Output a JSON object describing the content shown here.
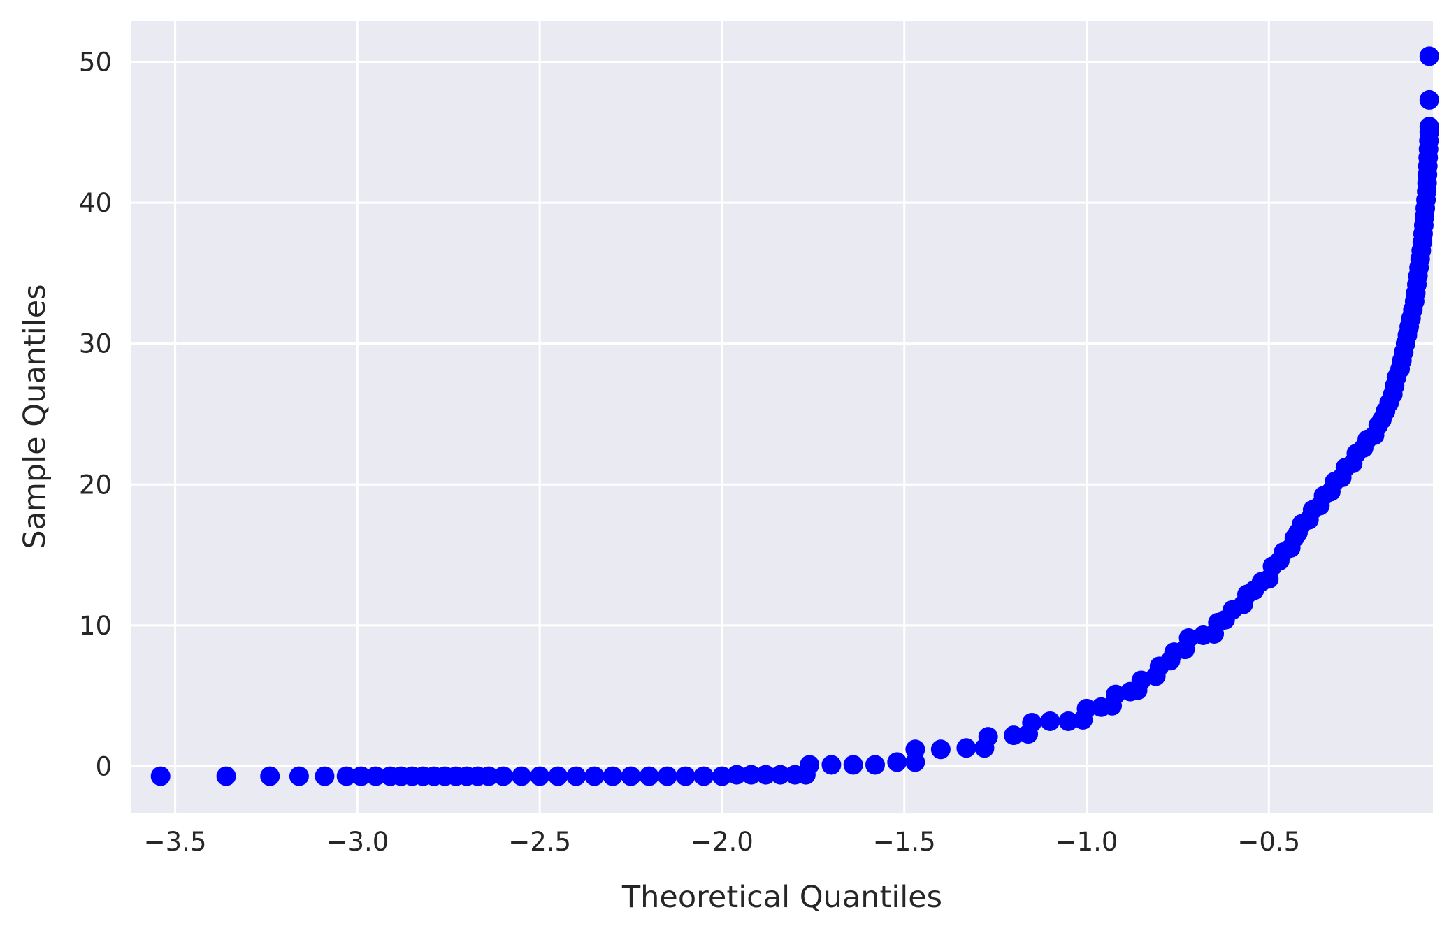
{
  "chart_data": {
    "type": "scatter",
    "title": "",
    "xlabel": "Theoretical Quantiles",
    "ylabel": "Sample Quantiles",
    "xlim": [
      -3.62,
      -0.05
    ],
    "ylim": [
      -3.3,
      52.9
    ],
    "x_ticks": [
      -3.5,
      -3.0,
      -2.5,
      -2.0,
      -1.5,
      -1.0,
      -0.5
    ],
    "x_tick_labels": [
      "−3.5",
      "−3.0",
      "−2.5",
      "−2.0",
      "−1.5",
      "−1.0",
      "−0.5"
    ],
    "y_ticks": [
      0,
      10,
      20,
      30,
      40,
      50
    ],
    "y_tick_labels": [
      "0",
      "10",
      "20",
      "30",
      "40",
      "50"
    ],
    "grid": true,
    "colors": {
      "marker": "#0000ff",
      "plot_background": "#eaeaf2",
      "grid": "#ffffff",
      "text": "#262626"
    },
    "series": [
      {
        "points": [
          [
            -3.54,
            -0.7
          ],
          [
            -3.36,
            -0.7
          ],
          [
            -3.24,
            -0.7
          ],
          [
            -3.16,
            -0.7
          ],
          [
            -3.09,
            -0.7
          ],
          [
            -3.03,
            -0.7
          ],
          [
            -2.99,
            -0.7
          ],
          [
            -2.95,
            -0.7
          ],
          [
            -2.91,
            -0.7
          ],
          [
            -2.88,
            -0.7
          ],
          [
            -2.85,
            -0.7
          ],
          [
            -2.82,
            -0.7
          ],
          [
            -2.79,
            -0.7
          ],
          [
            -2.76,
            -0.7
          ],
          [
            -2.73,
            -0.7
          ],
          [
            -2.7,
            -0.7
          ],
          [
            -2.67,
            -0.7
          ],
          [
            -2.64,
            -0.7
          ],
          [
            -2.6,
            -0.7
          ],
          [
            -2.55,
            -0.7
          ],
          [
            -2.5,
            -0.7
          ],
          [
            -2.45,
            -0.7
          ],
          [
            -2.4,
            -0.7
          ],
          [
            -2.35,
            -0.7
          ],
          [
            -2.3,
            -0.7
          ],
          [
            -2.25,
            -0.7
          ],
          [
            -2.2,
            -0.7
          ],
          [
            -2.15,
            -0.7
          ],
          [
            -2.1,
            -0.7
          ],
          [
            -2.05,
            -0.7
          ],
          [
            -2.0,
            -0.7
          ],
          [
            -1.96,
            -0.6
          ],
          [
            -1.92,
            -0.6
          ],
          [
            -1.88,
            -0.6
          ],
          [
            -1.84,
            -0.6
          ],
          [
            -1.8,
            -0.6
          ],
          [
            -1.77,
            -0.6
          ],
          [
            -1.76,
            0.1
          ],
          [
            -1.7,
            0.1
          ],
          [
            -1.64,
            0.1
          ],
          [
            -1.58,
            0.1
          ],
          [
            -1.52,
            0.3
          ],
          [
            -1.47,
            0.3
          ],
          [
            -1.47,
            1.2
          ],
          [
            -1.4,
            1.2
          ],
          [
            -1.33,
            1.3
          ],
          [
            -1.28,
            1.3
          ],
          [
            -1.27,
            2.1
          ],
          [
            -1.2,
            2.2
          ],
          [
            -1.16,
            2.3
          ],
          [
            -1.15,
            3.1
          ],
          [
            -1.1,
            3.2
          ],
          [
            -1.05,
            3.2
          ],
          [
            -1.01,
            3.3
          ],
          [
            -1.0,
            4.1
          ],
          [
            -0.96,
            4.2
          ],
          [
            -0.93,
            4.3
          ],
          [
            -0.92,
            5.1
          ],
          [
            -0.88,
            5.3
          ],
          [
            -0.86,
            5.4
          ],
          [
            -0.85,
            6.1
          ],
          [
            -0.81,
            6.4
          ],
          [
            -0.8,
            7.1
          ],
          [
            -0.77,
            7.5
          ],
          [
            -0.76,
            8.1
          ],
          [
            -0.73,
            8.3
          ],
          [
            -0.72,
            9.1
          ],
          [
            -0.68,
            9.3
          ],
          [
            -0.65,
            9.4
          ],
          [
            -0.64,
            10.2
          ],
          [
            -0.62,
            10.4
          ],
          [
            -0.6,
            11.1
          ],
          [
            -0.57,
            11.5
          ],
          [
            -0.56,
            12.2
          ],
          [
            -0.54,
            12.5
          ],
          [
            -0.52,
            13.1
          ],
          [
            -0.5,
            13.3
          ],
          [
            -0.49,
            14.2
          ],
          [
            -0.47,
            14.6
          ],
          [
            -0.46,
            15.2
          ],
          [
            -0.44,
            15.5
          ],
          [
            -0.43,
            16.2
          ],
          [
            -0.42,
            16.6
          ],
          [
            -0.41,
            17.2
          ],
          [
            -0.39,
            17.5
          ],
          [
            -0.38,
            18.2
          ],
          [
            -0.36,
            18.5
          ],
          [
            -0.35,
            19.2
          ],
          [
            -0.33,
            19.5
          ],
          [
            -0.32,
            20.2
          ],
          [
            -0.3,
            20.5
          ],
          [
            -0.29,
            21.2
          ],
          [
            -0.27,
            21.5
          ],
          [
            -0.26,
            22.2
          ],
          [
            -0.24,
            22.6
          ],
          [
            -0.23,
            23.2
          ],
          [
            -0.21,
            23.5
          ],
          [
            -0.2,
            24.2
          ],
          [
            -0.19,
            24.6
          ],
          [
            -0.18,
            25.2
          ],
          [
            -0.17,
            25.8
          ],
          [
            -0.16,
            26.4
          ],
          [
            -0.155,
            27.0
          ],
          [
            -0.15,
            27.6
          ],
          [
            -0.14,
            28.2
          ],
          [
            -0.135,
            28.8
          ],
          [
            -0.13,
            29.4
          ],
          [
            -0.125,
            30.0
          ],
          [
            -0.12,
            30.6
          ],
          [
            -0.115,
            31.2
          ],
          [
            -0.11,
            31.8
          ],
          [
            -0.105,
            32.4
          ],
          [
            -0.1,
            33.0
          ],
          [
            -0.097,
            33.6
          ],
          [
            -0.094,
            34.2
          ],
          [
            -0.091,
            34.8
          ],
          [
            -0.088,
            35.4
          ],
          [
            -0.085,
            36.0
          ],
          [
            -0.082,
            36.6
          ],
          [
            -0.079,
            37.2
          ],
          [
            -0.077,
            37.8
          ],
          [
            -0.075,
            38.4
          ],
          [
            -0.073,
            39.0
          ],
          [
            -0.071,
            39.6
          ],
          [
            -0.069,
            40.2
          ],
          [
            -0.067,
            40.8
          ],
          [
            -0.066,
            41.4
          ],
          [
            -0.065,
            42.0
          ],
          [
            -0.064,
            42.6
          ],
          [
            -0.063,
            43.2
          ],
          [
            -0.062,
            43.8
          ],
          [
            -0.061,
            44.4
          ],
          [
            -0.06,
            45.0
          ],
          [
            -0.06,
            45.4
          ],
          [
            -0.06,
            47.3
          ],
          [
            -0.06,
            50.4
          ]
        ]
      }
    ]
  }
}
